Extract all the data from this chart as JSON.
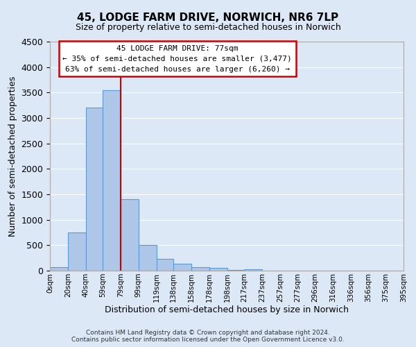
{
  "title": "45, LODGE FARM DRIVE, NORWICH, NR6 7LP",
  "subtitle": "Size of property relative to semi-detached houses in Norwich",
  "xlabel": "Distribution of semi-detached houses by size in Norwich",
  "ylabel": "Number of semi-detached properties",
  "footnote1": "Contains HM Land Registry data © Crown copyright and database right 2024.",
  "footnote2": "Contains public sector information licensed under the Open Government Licence v3.0.",
  "bin_edges": [
    0,
    20,
    40,
    59,
    79,
    99,
    119,
    138,
    158,
    178,
    198,
    217,
    237,
    257,
    277,
    296,
    316,
    336,
    356,
    375,
    395
  ],
  "bin_labels": [
    "0sqm",
    "20sqm",
    "40sqm",
    "59sqm",
    "79sqm",
    "99sqm",
    "119sqm",
    "138sqm",
    "158sqm",
    "178sqm",
    "198sqm",
    "217sqm",
    "237sqm",
    "257sqm",
    "277sqm",
    "296sqm",
    "316sqm",
    "336sqm",
    "356sqm",
    "375sqm",
    "395sqm"
  ],
  "bar_heights": [
    75,
    750,
    3200,
    3550,
    1400,
    500,
    230,
    130,
    75,
    50,
    20,
    30,
    0,
    0,
    0,
    0,
    0,
    0,
    0,
    0
  ],
  "property_size": 77,
  "property_line_x": 79,
  "ylim": [
    0,
    4500
  ],
  "yticks": [
    0,
    500,
    1000,
    1500,
    2000,
    2500,
    3000,
    3500,
    4000,
    4500
  ],
  "bar_color": "#aec6e8",
  "bar_edge_color": "#5b9bd5",
  "line_color": "#cc0000",
  "box_text_line1": "45 LODGE FARM DRIVE: 77sqm",
  "box_text_line2": "← 35% of semi-detached houses are smaller (3,477)",
  "box_text_line3": "63% of semi-detached houses are larger (6,260) →",
  "background_color": "#dce8f5",
  "plot_bg_color": "#dce8f5",
  "grid_color": "white"
}
